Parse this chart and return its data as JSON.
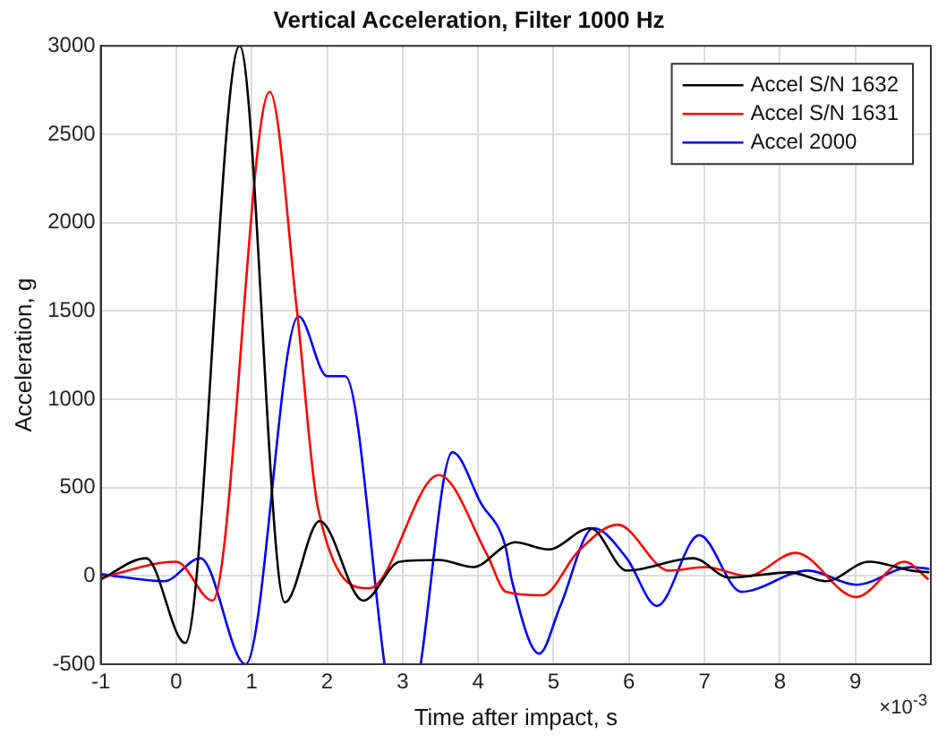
{
  "chart_data": {
    "type": "line",
    "title": "Vertical Acceleration, Filter 1000 Hz",
    "xlabel": "Time after impact, s",
    "ylabel": "Acceleration, g",
    "annotations": [
      "×10$^{-3}$"
    ],
    "xlim": [
      -1,
      10
    ],
    "xticks": [
      -1,
      0,
      1,
      2,
      3,
      4,
      5,
      6,
      7,
      8,
      9
    ],
    "ylim": [
      -500,
      3000
    ],
    "yticks": [
      -500,
      0,
      500,
      1000,
      1500,
      2000,
      2500,
      3000
    ],
    "grid": true,
    "legend": "top right",
    "marker": "none",
    "line_style": "solid",
    "series": [
      {
        "name": "Accel S/N 1632",
        "color": "#000000",
        "x": [
          -1,
          -0.4,
          0.12,
          0.84,
          1.44,
          1.9,
          2.48,
          2.96,
          3.48,
          3.94,
          4.36,
          4.49,
          4.93,
          5.49,
          5.97,
          6.85,
          7.33,
          8.13,
          8.61,
          9.18,
          9.74,
          9.98
        ],
        "values": [
          -20,
          100,
          -380,
          3000,
          -150,
          310,
          -140,
          80,
          90,
          50,
          170,
          190,
          150,
          270,
          30,
          100,
          -10,
          20,
          -30,
          80,
          30,
          20
        ]
      },
      {
        "name": "Accel S/N 1631",
        "color": "#ff0000",
        "x": [
          -1,
          0,
          0.48,
          1.24,
          1.6,
          1.88,
          2.56,
          3.48,
          4.12,
          4.37,
          4.85,
          5.33,
          5.85,
          6.53,
          7.01,
          7.57,
          8.21,
          9.01,
          9.65,
          9.97
        ],
        "values": [
          -10,
          80,
          -140,
          2740,
          1500,
          380,
          -70,
          570,
          120,
          -90,
          -110,
          140,
          290,
          30,
          50,
          0,
          130,
          -120,
          80,
          -20
        ]
      },
      {
        "name": "Accel 2000",
        "color": "#0000ff",
        "x": [
          -1,
          -0.16,
          0.32,
          0.92,
          1.62,
          2.0,
          2.24,
          2.76,
          3.0,
          3.24,
          3.66,
          4.04,
          4.36,
          4.45,
          4.81,
          5.09,
          5.53,
          5.97,
          6.37,
          6.93,
          7.49,
          8.37,
          9.01,
          9.74,
          9.98
        ],
        "values": [
          10,
          -30,
          100,
          -500,
          1470,
          1130,
          1130,
          -500,
          null,
          -500,
          700,
          410,
          170,
          -30,
          -440,
          -170,
          270,
          100,
          -170,
          230,
          -90,
          30,
          -50,
          50,
          40
        ]
      }
    ]
  }
}
